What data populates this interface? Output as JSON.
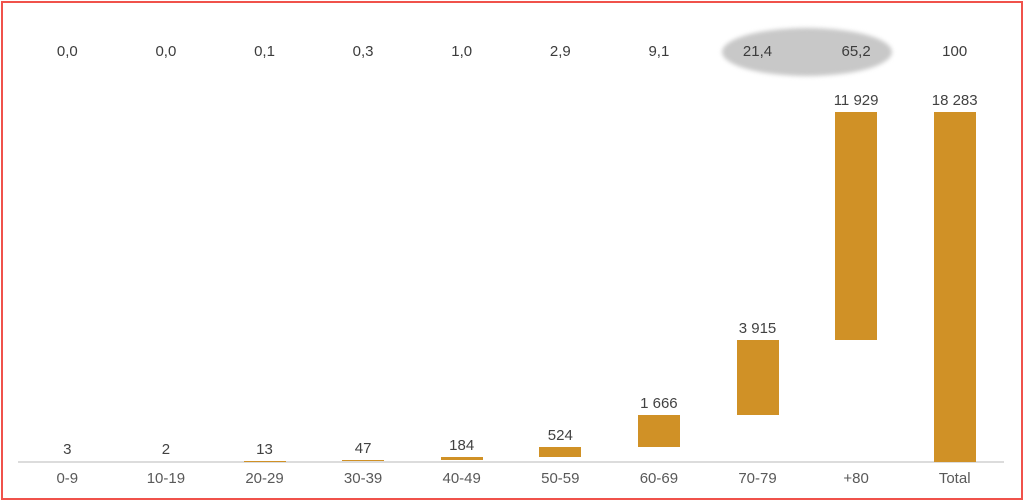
{
  "frame": {
    "border_color": "#f0524b"
  },
  "chart_data": {
    "type": "bar",
    "subtype": "waterfall",
    "title": "",
    "xlabel": "",
    "ylabel": "",
    "ylim": [
      0,
      18283
    ],
    "grid": false,
    "legend": "none",
    "categories": [
      "0-9",
      "10-19",
      "20-29",
      "30-39",
      "40-49",
      "50-59",
      "60-69",
      "70-79",
      "+80",
      "Total"
    ],
    "values": [
      3,
      2,
      13,
      47,
      184,
      524,
      1666,
      3915,
      11929,
      18283
    ],
    "value_labels": [
      "3",
      "2",
      "13",
      "47",
      "184",
      "524",
      "1 666",
      "3 915",
      "11 929",
      "18 283"
    ],
    "percent_labels": [
      "0,0",
      "0,0",
      "0,1",
      "0,3",
      "1,0",
      "2,9",
      "9,1",
      "21,4",
      "65,2",
      "100"
    ],
    "cumulative": [
      3,
      5,
      18,
      65,
      249,
      773,
      2439,
      6354,
      18283,
      18283
    ],
    "is_total": [
      false,
      false,
      false,
      false,
      false,
      false,
      false,
      false,
      false,
      true
    ],
    "bar_color": "#d09126",
    "axis_line_color": "#dcdcdc",
    "percent_text_color": "#3c3c3c",
    "value_text_color": "#424242",
    "category_text_color": "#595959",
    "highlight": {
      "shape": "ellipse",
      "color": "#c8c8c8",
      "columns": [
        7,
        8
      ],
      "labels_covered": [
        "21,4",
        "65,2"
      ]
    }
  }
}
